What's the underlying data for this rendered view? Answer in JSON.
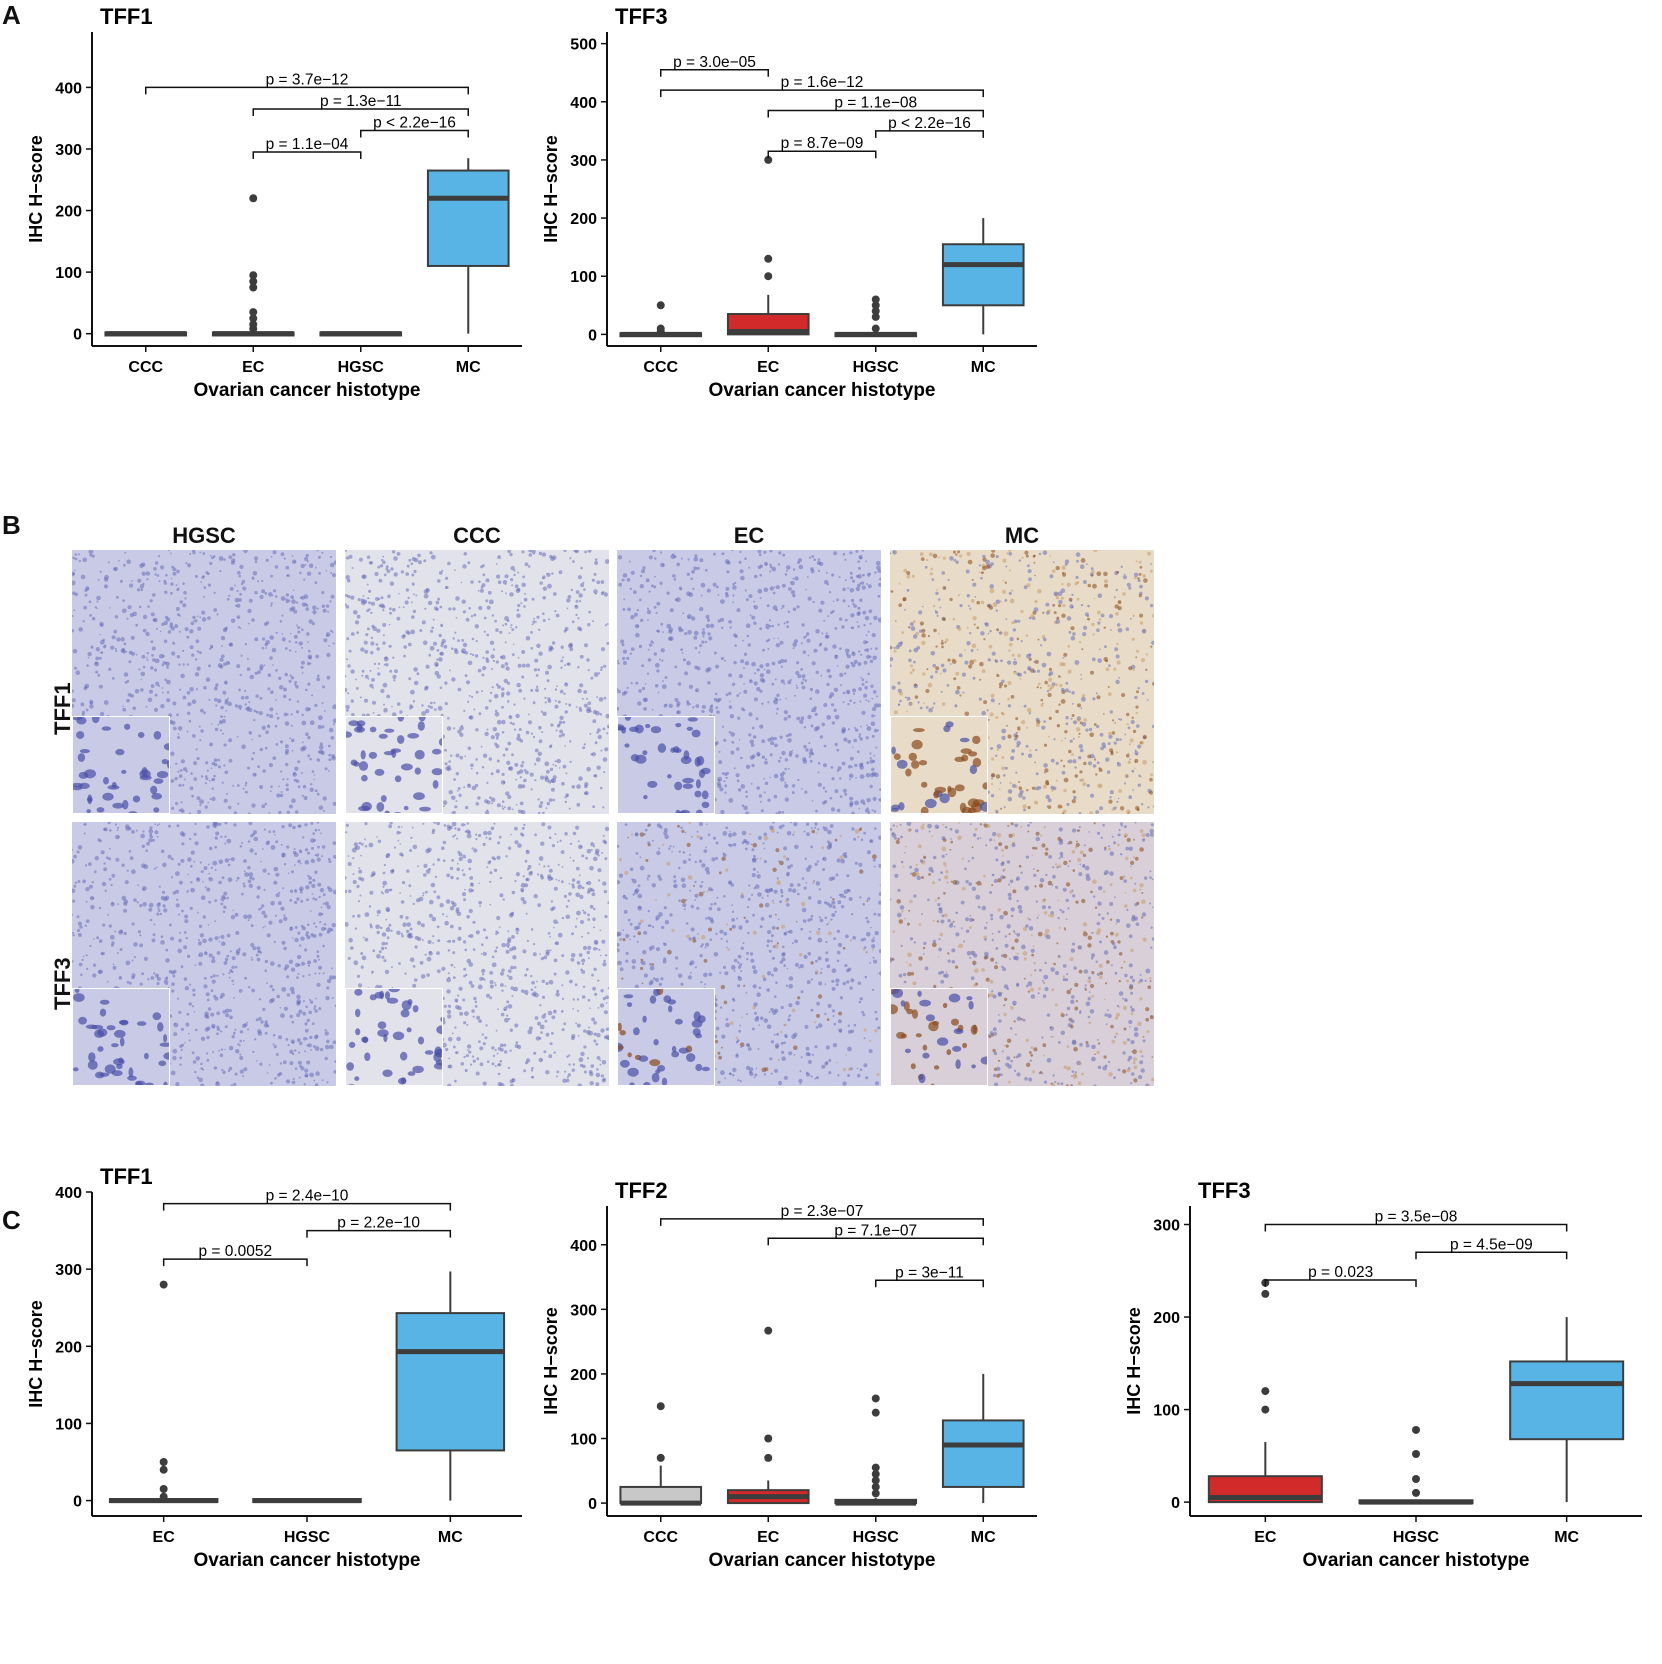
{
  "panels": {
    "A": {
      "letter": "A",
      "charts": [
        {
          "type": "box",
          "title": "TFF1",
          "xlabel": "Ovarian cancer histotype",
          "ylabel": "IHC H−score",
          "ylim": [
            -20,
            490
          ],
          "yticks": [
            0,
            100,
            200,
            300,
            400
          ],
          "categories": [
            "CCC",
            "EC",
            "HGSC",
            "MC"
          ],
          "boxes": [
            {
              "q1": 0,
              "median": 0,
              "q3": 2,
              "lo": 0,
              "hi": 3,
              "color": "#3d3d3d",
              "outliers": []
            },
            {
              "q1": 0,
              "median": 0,
              "q3": 2,
              "lo": 0,
              "hi": 3,
              "color": "#3d3d3d",
              "outliers": [
                8,
                15,
                25,
                35,
                75,
                85,
                95,
                220
              ]
            },
            {
              "q1": 0,
              "median": 0,
              "q3": 2,
              "lo": 0,
              "hi": 3,
              "color": "#3d3d3d",
              "outliers": []
            },
            {
              "q1": 110,
              "median": 220,
              "q3": 265,
              "lo": 0,
              "hi": 285,
              "color": "#57b4e4",
              "outliers": []
            }
          ],
          "comparisons": [
            {
              "from": 0,
              "to": 3,
              "y": 400,
              "label": "p = 3.7e−12"
            },
            {
              "from": 1,
              "to": 3,
              "y": 365,
              "label": "p = 1.3e−11"
            },
            {
              "from": 2,
              "to": 3,
              "y": 330,
              "label": "p < 2.2e−16"
            },
            {
              "from": 1,
              "to": 2,
              "y": 295,
              "label": "p = 1.1e−04"
            }
          ]
        },
        {
          "type": "box",
          "title": "TFF3",
          "xlabel": "Ovarian cancer histotype",
          "ylabel": "IHC H−score",
          "ylim": [
            -20,
            520
          ],
          "yticks": [
            0,
            100,
            200,
            300,
            400,
            500
          ],
          "categories": [
            "CCC",
            "EC",
            "HGSC",
            "MC"
          ],
          "boxes": [
            {
              "q1": 0,
              "median": 0,
              "q3": 2,
              "lo": 0,
              "hi": 3,
              "color": "#3d3d3d",
              "outliers": [
                5,
                10,
                50
              ]
            },
            {
              "q1": 0,
              "median": 5,
              "q3": 35,
              "lo": 0,
              "hi": 68,
              "color": "#d22a2a",
              "outliers": [
                100,
                130,
                300
              ]
            },
            {
              "q1": 0,
              "median": 0,
              "q3": 2,
              "lo": 0,
              "hi": 3,
              "color": "#3d3d3d",
              "outliers": [
                10,
                30,
                40,
                50,
                60
              ]
            },
            {
              "q1": 50,
              "median": 120,
              "q3": 155,
              "lo": 0,
              "hi": 200,
              "color": "#57b4e4",
              "outliers": []
            }
          ],
          "comparisons": [
            {
              "from": 0,
              "to": 1,
              "y": 455,
              "label": "p = 3.0e−05"
            },
            {
              "from": 0,
              "to": 3,
              "y": 420,
              "label": "p = 1.6e−12"
            },
            {
              "from": 1,
              "to": 3,
              "y": 385,
              "label": "p = 1.1e−08"
            },
            {
              "from": 2,
              "to": 3,
              "y": 350,
              "label": "p < 2.2e−16"
            },
            {
              "from": 1,
              "to": 2,
              "y": 315,
              "label": "p = 8.7e−09"
            }
          ]
        }
      ]
    },
    "B": {
      "letter": "B",
      "columns": [
        "HGSC",
        "CCC",
        "EC",
        "MC"
      ],
      "rows": [
        "TFF1",
        "TFF3"
      ]
    },
    "C": {
      "letter": "C",
      "charts": [
        {
          "type": "box",
          "title": "TFF1",
          "xlabel": "Ovarian cancer histotype",
          "ylabel": "IHC H−score",
          "ylim": [
            -20,
            400
          ],
          "yticks": [
            0,
            100,
            200,
            300,
            400
          ],
          "categories": [
            "EC",
            "HGSC",
            "MC"
          ],
          "boxes": [
            {
              "q1": 0,
              "median": 0,
              "q3": 2,
              "lo": 0,
              "hi": 3,
              "color": "#3d3d3d",
              "outliers": [
                5,
                15,
                40,
                50,
                280
              ]
            },
            {
              "q1": 0,
              "median": 0,
              "q3": 2,
              "lo": 0,
              "hi": 3,
              "color": "#3d3d3d",
              "outliers": []
            },
            {
              "q1": 65,
              "median": 193,
              "q3": 243,
              "lo": 0,
              "hi": 297,
              "color": "#57b4e4",
              "outliers": []
            }
          ],
          "comparisons": [
            {
              "from": 0,
              "to": 2,
              "y": 385,
              "label": "p = 2.4e−10"
            },
            {
              "from": 1,
              "to": 2,
              "y": 350,
              "label": "p = 2.2e−10"
            },
            {
              "from": 0,
              "to": 1,
              "y": 313,
              "label": "p = 0.0052"
            }
          ]
        },
        {
          "type": "box",
          "title": "TFF2",
          "xlabel": "Ovarian cancer histotype",
          "ylabel": "IHC H−score",
          "ylim": [
            -20,
            460
          ],
          "yticks": [
            0,
            100,
            200,
            300,
            400
          ],
          "categories": [
            "CCC",
            "EC",
            "HGSC",
            "MC"
          ],
          "boxes": [
            {
              "q1": 0,
              "median": 0,
              "q3": 25,
              "lo": 0,
              "hi": 58,
              "color": "#c8c8c8",
              "outliers": [
                70,
                150
              ]
            },
            {
              "q1": 0,
              "median": 10,
              "q3": 20,
              "lo": 0,
              "hi": 35,
              "color": "#d22a2a",
              "outliers": [
                70,
                100,
                267
              ]
            },
            {
              "q1": 0,
              "median": 0,
              "q3": 5,
              "lo": 0,
              "hi": 8,
              "color": "#3d3d3d",
              "outliers": [
                15,
                25,
                35,
                45,
                55,
                140,
                162
              ]
            },
            {
              "q1": 25,
              "median": 90,
              "q3": 128,
              "lo": 0,
              "hi": 200,
              "color": "#57b4e4",
              "outliers": []
            }
          ],
          "comparisons": [
            {
              "from": 0,
              "to": 3,
              "y": 440,
              "label": "p = 2.3e−07"
            },
            {
              "from": 1,
              "to": 3,
              "y": 410,
              "label": "p = 7.1e−07"
            },
            {
              "from": 2,
              "to": 3,
              "y": 345,
              "label": "p = 3e−11"
            }
          ]
        },
        {
          "type": "box",
          "title": "TFF3",
          "xlabel": "Ovarian cancer histotype",
          "ylabel": "IHC H−score",
          "ylim": [
            -15,
            320
          ],
          "yticks": [
            0,
            100,
            200,
            300
          ],
          "categories": [
            "EC",
            "HGSC",
            "MC"
          ],
          "boxes": [
            {
              "q1": 0,
              "median": 5,
              "q3": 28,
              "lo": 0,
              "hi": 65,
              "color": "#d22a2a",
              "outliers": [
                100,
                120,
                225,
                237
              ]
            },
            {
              "q1": 0,
              "median": 0,
              "q3": 2,
              "lo": 0,
              "hi": 3,
              "color": "#3d3d3d",
              "outliers": [
                10,
                25,
                52,
                78
              ]
            },
            {
              "q1": 68,
              "median": 128,
              "q3": 152,
              "lo": 0,
              "hi": 200,
              "color": "#57b4e4",
              "outliers": []
            }
          ],
          "comparisons": [
            {
              "from": 0,
              "to": 2,
              "y": 300,
              "label": "p = 3.5e−08"
            },
            {
              "from": 1,
              "to": 2,
              "y": 270,
              "label": "p = 4.5e−09"
            },
            {
              "from": 0,
              "to": 1,
              "y": 240,
              "label": "p = 0.023"
            }
          ]
        }
      ]
    }
  },
  "micrograph_colors": {
    "blue_bg": "#c9cbe6",
    "blue_nuclei": "#6a6fb8",
    "pale_bg": "#e2e2ea",
    "brown": "#8a4a1c",
    "light_brown": "#c89a6a"
  }
}
